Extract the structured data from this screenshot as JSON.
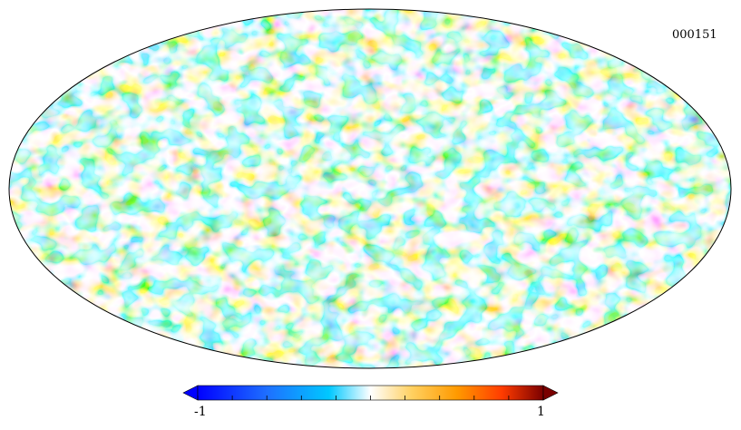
{
  "map": {
    "id_label": "000151",
    "projection": "mollweide",
    "value_range": [
      -1,
      1
    ]
  },
  "colorbar": {
    "min_label": "-1",
    "max_label": "1",
    "ticks": 11,
    "colors": [
      "#0000ff",
      "#1e6fff",
      "#00c8ff",
      "#ffffff",
      "#ffd060",
      "#ff9a00",
      "#ff3c00",
      "#7a0000"
    ]
  }
}
